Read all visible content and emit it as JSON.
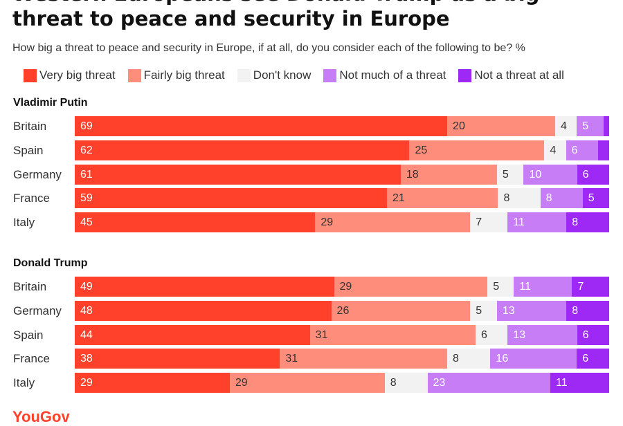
{
  "chart_data": {
    "type": "bar",
    "orientation": "horizontal",
    "stacked": true,
    "title": "Western Europeans see Donald Trump as a big threat to peace and security in Europe",
    "subtitle": "How big a threat to peace and security in Europe, if at all, do you consider each of the following to be? %",
    "legend": [
      "Very big threat",
      "Fairly big threat",
      "Don't know",
      "Not much of a threat",
      "Not a threat at all"
    ],
    "legend_placement": "top",
    "colors": [
      "#ff412c",
      "#fe8e7b",
      "#f2f2f2",
      "#c77df5",
      "#9e29f5"
    ],
    "label_colors": [
      "#ffffff",
      "#333333",
      "#333333",
      "#ffffff",
      "#ffffff"
    ],
    "groups": [
      {
        "name": "Vladimir Putin",
        "rows": [
          {
            "category": "Britain",
            "values": [
              69,
              20,
              4,
              5,
              1
            ],
            "labels": [
              "69",
              "20",
              "4",
              "5",
              ""
            ]
          },
          {
            "category": "Spain",
            "values": [
              62,
              25,
              4,
              6,
              2
            ],
            "labels": [
              "62",
              "25",
              "4",
              "6",
              ""
            ]
          },
          {
            "category": "Germany",
            "values": [
              61,
              18,
              5,
              10,
              6
            ],
            "labels": [
              "61",
              "18",
              "5",
              "10",
              "6"
            ]
          },
          {
            "category": "France",
            "values": [
              59,
              21,
              8,
              8,
              5
            ],
            "labels": [
              "59",
              "21",
              "8",
              "8",
              "5"
            ]
          },
          {
            "category": "Italy",
            "values": [
              45,
              29,
              7,
              11,
              8
            ],
            "labels": [
              "45",
              "29",
              "7",
              "11",
              "8"
            ]
          }
        ]
      },
      {
        "name": "Donald Trump",
        "rows": [
          {
            "category": "Britain",
            "values": [
              49,
              29,
              5,
              11,
              7
            ],
            "labels": [
              "49",
              "29",
              "5",
              "11",
              "7"
            ]
          },
          {
            "category": "Germany",
            "values": [
              48,
              26,
              5,
              13,
              8
            ],
            "labels": [
              "48",
              "26",
              "5",
              "13",
              "8"
            ]
          },
          {
            "category": "Spain",
            "values": [
              44,
              31,
              6,
              13,
              6
            ],
            "labels": [
              "44",
              "31",
              "6",
              "13",
              "6"
            ]
          },
          {
            "category": "France",
            "values": [
              38,
              31,
              8,
              16,
              6
            ],
            "labels": [
              "38",
              "31",
              "8",
              "16",
              "6"
            ]
          },
          {
            "category": "Italy",
            "values": [
              29,
              29,
              8,
              23,
              11
            ],
            "labels": [
              "29",
              "29",
              "8",
              "23",
              "11"
            ]
          }
        ]
      }
    ]
  },
  "brand": "YouGov"
}
